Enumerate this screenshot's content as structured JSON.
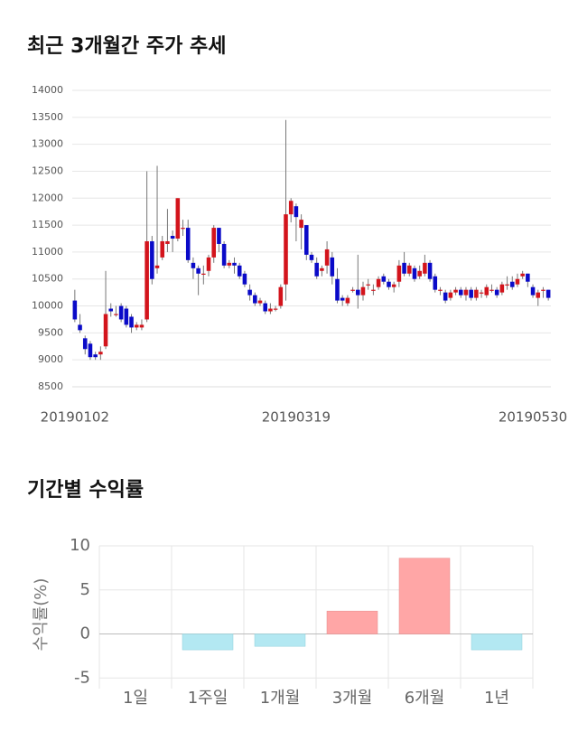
{
  "chart_data": [
    {
      "type": "candlestick",
      "title": "최근 3개월간 주가 추세",
      "categories": [
        "20190102",
        null,
        null,
        null,
        null,
        null,
        null,
        null,
        null,
        null,
        null,
        null,
        null,
        null,
        null,
        null,
        null,
        null,
        null,
        null,
        null,
        null,
        null,
        null,
        null,
        null,
        null,
        null,
        null,
        null,
        null,
        null,
        null,
        null,
        null,
        null,
        null,
        null,
        null,
        null,
        null,
        null,
        null,
        "20190319",
        null,
        null,
        null,
        null,
        null,
        null,
        null,
        null,
        null,
        null,
        null,
        null,
        null,
        null,
        null,
        null,
        null,
        null,
        null,
        null,
        null,
        null,
        null,
        null,
        null,
        null,
        null,
        null,
        null,
        null,
        null,
        null,
        null,
        null,
        null,
        null,
        null,
        null,
        null,
        null,
        null,
        null,
        null,
        null,
        null,
        null,
        null,
        null,
        "20190530"
      ],
      "open": [
        10100,
        9650,
        9400,
        9300,
        9100,
        9100,
        9250,
        9950,
        9850,
        10000,
        9950,
        9800,
        9600,
        9600,
        9750,
        11200,
        10700,
        10900,
        11150,
        11300,
        11250,
        11450,
        11450,
        10800,
        10700,
        10600,
        10650,
        10900,
        11450,
        11150,
        10750,
        10800,
        10750,
        10600,
        10300,
        10200,
        10050,
        10050,
        9900,
        9950,
        10000,
        10400,
        11700,
        11850,
        11450,
        11500,
        10950,
        10800,
        10650,
        10750,
        10900,
        10500,
        10150,
        10050,
        10300,
        10300,
        10200,
        10400,
        10300,
        10350,
        10550,
        10450,
        10350,
        10450,
        10800,
        10600,
        10700,
        10550,
        10600,
        10800,
        10550,
        10300,
        10250,
        10150,
        10250,
        10300,
        10200,
        10300,
        10150,
        10250,
        10200,
        10300,
        10300,
        10250,
        10400,
        10450,
        10400,
        10550,
        10600,
        10350,
        10150,
        10300,
        10300
      ],
      "high": [
        10300,
        9850,
        9450,
        9350,
        9150,
        9250,
        10650,
        10050,
        10000,
        10050,
        10000,
        9850,
        9700,
        9750,
        12500,
        11300,
        12600,
        11300,
        11800,
        11400,
        12000,
        11600,
        11600,
        10900,
        10750,
        10750,
        10950,
        11500,
        11450,
        11200,
        10850,
        10900,
        10800,
        10650,
        10400,
        10250,
        10150,
        10100,
        10050,
        10000,
        10400,
        13450,
        12000,
        11900,
        11700,
        11500,
        11000,
        10900,
        10750,
        11200,
        11000,
        10700,
        10200,
        10200,
        10350,
        10950,
        10450,
        10500,
        10400,
        10550,
        10600,
        10500,
        10450,
        10850,
        11000,
        10800,
        10750,
        10750,
        10950,
        10850,
        10600,
        10350,
        10300,
        10300,
        10350,
        10350,
        10350,
        10350,
        10350,
        10300,
        10400,
        10400,
        10350,
        10450,
        10550,
        10550,
        10600,
        10650,
        10600,
        10400,
        10300,
        10350,
        10300
      ],
      "low": [
        9700,
        9500,
        9100,
        9000,
        9000,
        9000,
        9200,
        9800,
        9800,
        9700,
        9600,
        9500,
        9550,
        9550,
        9700,
        10400,
        10600,
        10850,
        11000,
        11000,
        11200,
        11300,
        10800,
        10500,
        10200,
        10400,
        10550,
        10800,
        11000,
        10700,
        10700,
        10600,
        10500,
        10350,
        10100,
        10000,
        10000,
        9850,
        9850,
        9900,
        9950,
        10100,
        11550,
        11200,
        11050,
        10850,
        10800,
        10500,
        10550,
        10600,
        10400,
        10050,
        10000,
        10000,
        10250,
        9950,
        10100,
        10300,
        10200,
        10300,
        10400,
        10300,
        10250,
        10350,
        10550,
        10550,
        10450,
        10500,
        10550,
        10450,
        10250,
        10200,
        10050,
        10100,
        10200,
        10150,
        10100,
        10100,
        10100,
        10150,
        10150,
        10250,
        10150,
        10200,
        10300,
        10300,
        10350,
        10500,
        10350,
        10150,
        10000,
        10150,
        10100
      ],
      "close": [
        9750,
        9550,
        9200,
        9050,
        9050,
        9150,
        9850,
        9900,
        9850,
        9750,
        9650,
        9600,
        9650,
        9650,
        11200,
        10500,
        10750,
        11200,
        11200,
        11250,
        12000,
        11450,
        10850,
        10700,
        10600,
        10600,
        10900,
        11450,
        11150,
        10750,
        10800,
        10750,
        10550,
        10400,
        10200,
        10050,
        10100,
        9900,
        9950,
        9950,
        10350,
        11700,
        11950,
        11650,
        11600,
        10950,
        10850,
        10550,
        10700,
        11050,
        10550,
        10100,
        10100,
        10150,
        10300,
        10200,
        10350,
        10400,
        10300,
        10500,
        10450,
        10350,
        10400,
        10750,
        10600,
        10750,
        10500,
        10650,
        10800,
        10500,
        10300,
        10300,
        10100,
        10250,
        10300,
        10200,
        10300,
        10150,
        10300,
        10250,
        10350,
        10300,
        10200,
        10400,
        10400,
        10350,
        10500,
        10600,
        10450,
        10200,
        10250,
        10300,
        10150
      ],
      "up_color": "#d3141c",
      "down_color": "#0a0ac8",
      "wick_color": "#777777",
      "ylim": [
        8500,
        14000
      ],
      "yticks": [
        8500,
        9000,
        9500,
        10000,
        10500,
        11000,
        11500,
        12000,
        12500,
        13000,
        13500,
        14000
      ],
      "grid": true
    },
    {
      "type": "bar",
      "title": "기간별 수익률",
      "ylabel": "수익률(%)",
      "categories": [
        "1일",
        "1주일",
        "1개월",
        "3개월",
        "6개월",
        "1년"
      ],
      "values": [
        0,
        -1.8,
        -1.4,
        2.6,
        8.6,
        -1.8
      ],
      "positive_color": "#ffa6a6",
      "negative_color": "#b3e8f2",
      "ylim": [
        -6.2,
        10
      ],
      "yticks": [
        -5,
        0,
        5,
        10
      ],
      "grid": true
    }
  ]
}
